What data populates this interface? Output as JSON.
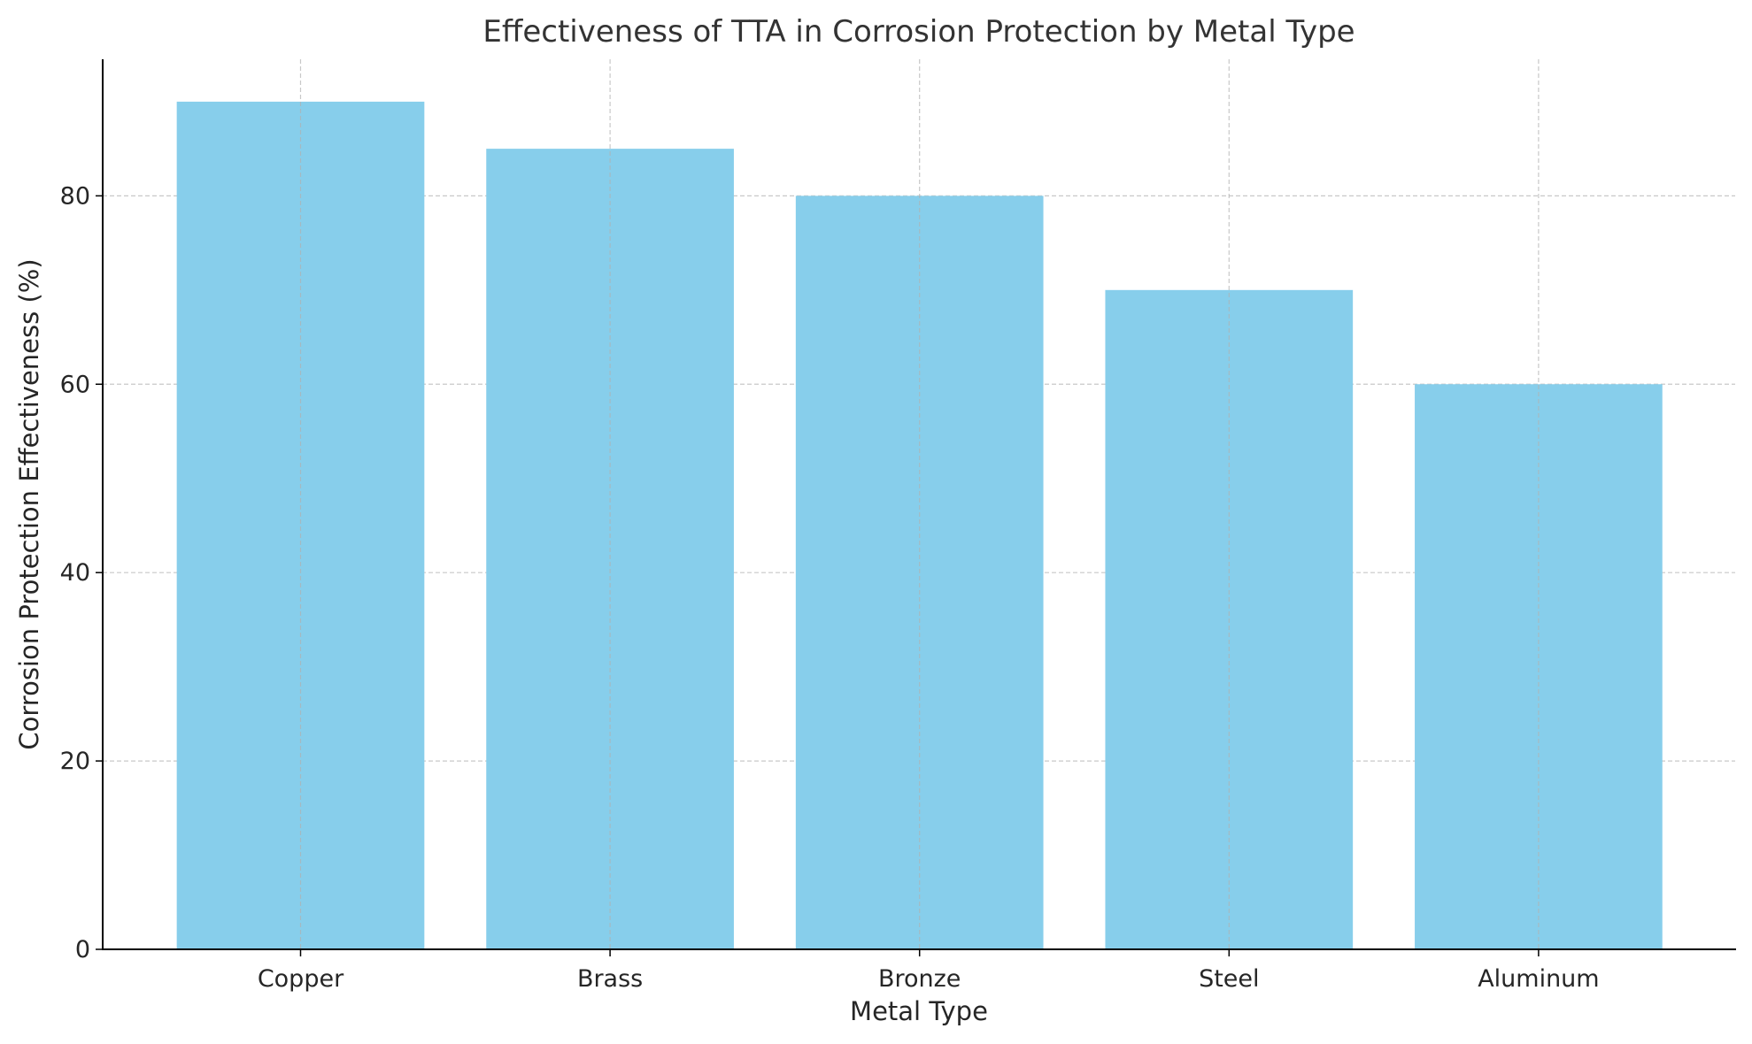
{
  "chart_data": {
    "type": "bar",
    "title": "Effectiveness of TTA in Corrosion Protection by Metal Type",
    "xlabel": "Metal Type",
    "ylabel": "Corrosion Protection Effectiveness (%)",
    "categories": [
      "Copper",
      "Brass",
      "Bronze",
      "Steel",
      "Aluminum"
    ],
    "values": [
      90,
      85,
      80,
      70,
      60
    ],
    "ylim": [
      0,
      94.5
    ],
    "yticks": [
      0,
      20,
      40,
      60,
      80
    ],
    "grid": true,
    "bar_color": "#87ceeb"
  }
}
